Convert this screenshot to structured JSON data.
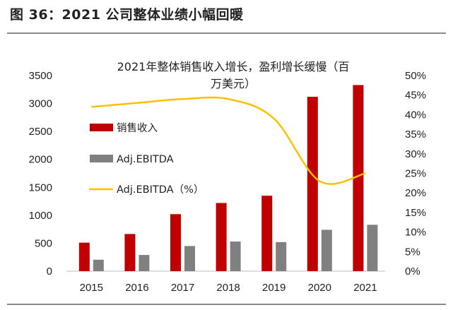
{
  "figure_caption": "图 36：2021 公司整体业绩小幅回暖",
  "chart_data": {
    "type": "bar",
    "title_line1": "2021年整体销售收入增长，盈利增长缓慢（百",
    "title_line2": "万美元）",
    "categories": [
      "2015",
      "2016",
      "2017",
      "2018",
      "2019",
      "2020",
      "2021"
    ],
    "series": [
      {
        "name": "销售收入",
        "type": "bar",
        "axis": "left",
        "color": "#c00000",
        "values": [
          510,
          665,
          1020,
          1220,
          1350,
          3120,
          3330
        ]
      },
      {
        "name": "Adj.EBITDA",
        "type": "bar",
        "axis": "left",
        "color": "#808080",
        "values": [
          205,
          290,
          450,
          530,
          520,
          740,
          830
        ]
      },
      {
        "name": "Adj.EBITDA（%）",
        "type": "line",
        "axis": "right",
        "color": "#ffc000",
        "values": [
          42,
          43,
          44,
          44,
          39,
          23,
          25
        ]
      }
    ],
    "y_left": {
      "min": 0,
      "max": 3500,
      "step": 500,
      "tick_labels": [
        "0",
        "500",
        "1000",
        "1500",
        "2000",
        "2500",
        "3000",
        "3500"
      ]
    },
    "y_right": {
      "min": 0,
      "max": 50,
      "step": 5,
      "tick_labels": [
        "0%",
        "5%",
        "10%",
        "15%",
        "20%",
        "25%",
        "30%",
        "35%",
        "40%",
        "45%",
        "50%"
      ]
    },
    "grid": false,
    "legend_position": "left, inside plot"
  }
}
